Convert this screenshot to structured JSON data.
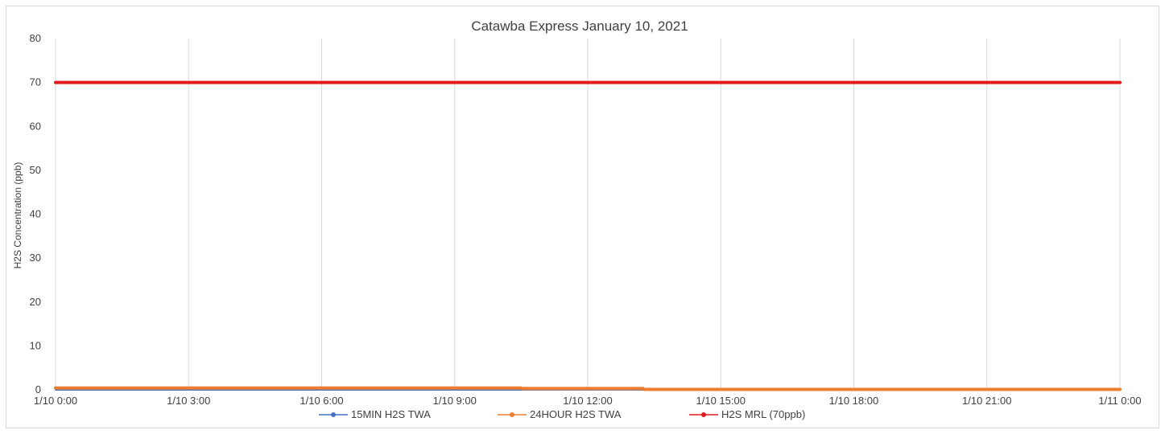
{
  "chart_data": {
    "type": "line",
    "title": "Catawba Express  January 10, 2021",
    "xlabel": "",
    "ylabel": "H2S Concentration (ppb)",
    "ylim": [
      0,
      80
    ],
    "yticks": [
      0,
      10,
      20,
      30,
      40,
      50,
      60,
      70,
      80
    ],
    "xlim": [
      "1/10/2021 00:00",
      "1/11/2021 00:00"
    ],
    "xticks": [
      "1/10 0:00",
      "1/10 3:00",
      "1/10 6:00",
      "1/10 9:00",
      "1/10 12:00",
      "1/10 15:00",
      "1/10 18:00",
      "1/10 21:00",
      "1/11 0:00"
    ],
    "grid": "vertical-major",
    "legend_position": "bottom",
    "series": [
      {
        "name": "15MIN H2S TWA",
        "color": "#4472c4",
        "x": [
          "1/10 0:00",
          "1/10 3:00",
          "1/10 6:00",
          "1/10 9:00",
          "1/10 10:30",
          "1/10 12:00",
          "1/10 15:00",
          "1/10 18:00",
          "1/10 21:00",
          "1/11 0:00"
        ],
        "values": [
          0,
          0,
          0,
          0,
          0,
          0,
          0,
          0,
          0,
          0
        ]
      },
      {
        "name": "24HOUR H2S TWA",
        "color": "#ed7d31",
        "x": [
          "1/10 0:00",
          "1/10 3:00",
          "1/10 6:00",
          "1/10 9:00",
          "1/10 10:30",
          "1/10 10:31",
          "1/10 13:15",
          "1/10 13:16",
          "1/10 15:00",
          "1/10 18:00",
          "1/10 21:00",
          "1/11 0:00"
        ],
        "values": [
          0.4,
          0.4,
          0.4,
          0.4,
          0.4,
          0.3,
          0.3,
          0.1,
          0.1,
          0.1,
          0.1,
          0.1
        ]
      },
      {
        "name": "H2S MRL (70ppb)",
        "color": "#e31a1c",
        "x": [
          "1/10 0:00",
          "1/11 0:00"
        ],
        "values": [
          70,
          70
        ]
      }
    ]
  }
}
